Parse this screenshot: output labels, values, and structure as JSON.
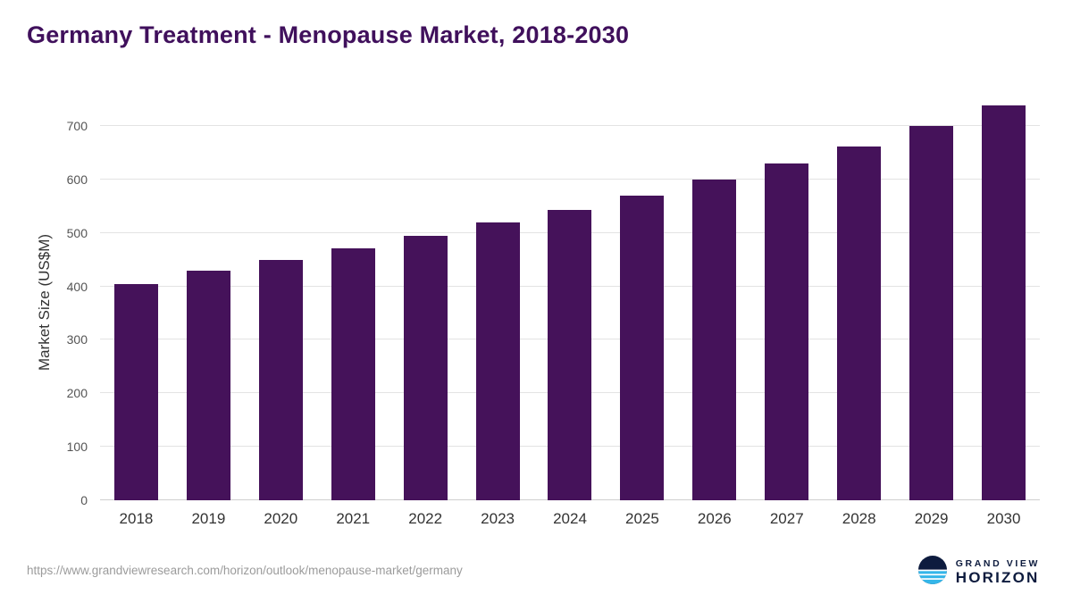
{
  "title": "Germany Treatment - Menopause Market, 2018-2030",
  "colors": {
    "title": "#40105C",
    "bar": "#45125A",
    "logo_navy": "#0D1B3E",
    "logo_blue": "#35B6E9"
  },
  "chart_data": {
    "type": "bar",
    "title": "Germany Treatment - Menopause Market, 2018-2030",
    "categories": [
      "2018",
      "2019",
      "2020",
      "2021",
      "2022",
      "2023",
      "2024",
      "2025",
      "2026",
      "2027",
      "2028",
      "2029",
      "2030"
    ],
    "values": [
      405,
      430,
      450,
      471,
      494,
      519,
      543,
      570,
      599,
      629,
      662,
      700,
      739
    ],
    "xlabel": "",
    "ylabel": "Market Size (US$M)",
    "ylim": [
      0,
      760
    ],
    "yticks": [
      0,
      100,
      200,
      300,
      400,
      500,
      600,
      700
    ],
    "bar_color": "#45125A",
    "grid": true,
    "legend": false
  },
  "footer": {
    "source_url": "https://www.grandviewresearch.com/horizon/outlook/menopause-market/germany",
    "brand_top": "GRAND VIEW",
    "brand_bottom": "HORIZON"
  }
}
